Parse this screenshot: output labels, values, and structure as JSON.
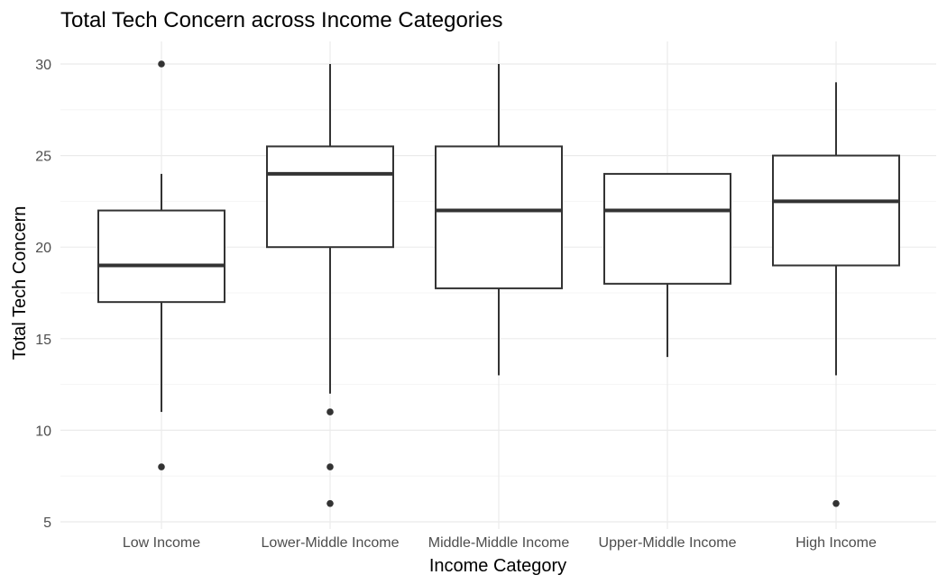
{
  "chart_data": {
    "type": "box",
    "title": "Total Tech Concern across Income Categories",
    "xlabel": "Income Category",
    "ylabel": "Total Tech Concern",
    "ylim": [
      5,
      30
    ],
    "yticks": [
      5,
      10,
      15,
      20,
      25,
      30
    ],
    "grid": true,
    "legend": "none",
    "categories": [
      "Low Income",
      "Lower-Middle Income",
      "Middle-Middle Income",
      "Upper-Middle Income",
      "High Income"
    ],
    "boxes": [
      {
        "category": "Low Income",
        "whisker_low": 11,
        "q1": 17,
        "median": 19,
        "q3": 22,
        "whisker_high": 24,
        "outliers": [
          8,
          30
        ]
      },
      {
        "category": "Lower-Middle Income",
        "whisker_low": 12,
        "q1": 20,
        "median": 24,
        "q3": 25.5,
        "whisker_high": 30,
        "outliers": [
          6,
          8,
          11
        ]
      },
      {
        "category": "Middle-Middle Income",
        "whisker_low": 13,
        "q1": 17.75,
        "median": 22,
        "q3": 25.5,
        "whisker_high": 30,
        "outliers": []
      },
      {
        "category": "Upper-Middle Income",
        "whisker_low": 14,
        "q1": 18,
        "median": 22,
        "q3": 24,
        "whisker_high": 24,
        "outliers": []
      },
      {
        "category": "High Income",
        "whisker_low": 13,
        "q1": 19,
        "median": 22.5,
        "q3": 25,
        "whisker_high": 29,
        "outliers": [
          6
        ]
      }
    ],
    "colors": {
      "box_stroke": "#333333",
      "box_fill": "#ffffff",
      "grid_major": "#ebebeb",
      "grid_minor": "#f5f5f5",
      "tick_text": "#4d4d4d",
      "title_text": "#000000"
    }
  }
}
